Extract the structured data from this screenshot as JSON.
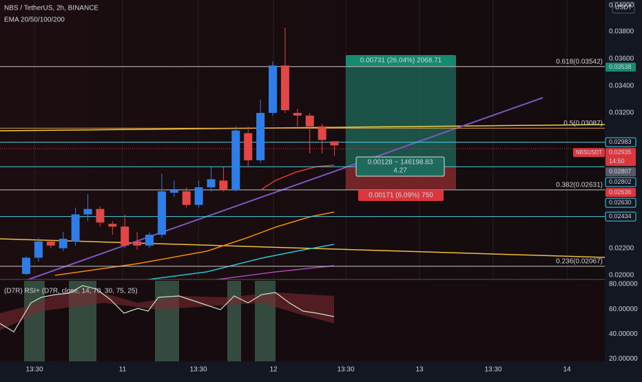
{
  "header": {
    "symbol": "NBS / TetherUS, 2h, BINANCE",
    "indicator": "EMA 20/50/100/200"
  },
  "currency": "USDT",
  "price_axis": {
    "ticks": [
      {
        "value": 0.04,
        "label": "0.04000"
      },
      {
        "value": 0.038,
        "label": "0.03800"
      },
      {
        "value": 0.036,
        "label": "0.03600"
      },
      {
        "value": 0.034,
        "label": "0.03400"
      },
      {
        "value": 0.032,
        "label": "0.03200"
      },
      {
        "value": 0.022,
        "label": "0.02200"
      },
      {
        "value": 0.02,
        "label": "0.02000"
      }
    ]
  },
  "time_axis": {
    "labels": [
      "13:30",
      "11",
      "13:30",
      "12",
      "13:30",
      "13",
      "13:30",
      "14"
    ]
  },
  "candles": [
    {
      "o": 0.0201,
      "h": 0.0214,
      "l": 0.02,
      "c": 0.0213
    },
    {
      "o": 0.0213,
      "h": 0.0228,
      "l": 0.021,
      "c": 0.0225
    },
    {
      "o": 0.0225,
      "h": 0.0226,
      "l": 0.022,
      "c": 0.0222
    },
    {
      "o": 0.022,
      "h": 0.0232,
      "l": 0.0218,
      "c": 0.0227
    },
    {
      "o": 0.0225,
      "h": 0.025,
      "l": 0.0222,
      "c": 0.0245
    },
    {
      "o": 0.0245,
      "h": 0.026,
      "l": 0.024,
      "c": 0.0249
    },
    {
      "o": 0.0249,
      "h": 0.0251,
      "l": 0.0236,
      "c": 0.0239
    },
    {
      "o": 0.0238,
      "h": 0.024,
      "l": 0.023,
      "c": 0.0236
    },
    {
      "o": 0.0236,
      "h": 0.0245,
      "l": 0.022,
      "c": 0.0222
    },
    {
      "o": 0.0225,
      "h": 0.0232,
      "l": 0.0219,
      "c": 0.0222
    },
    {
      "o": 0.0222,
      "h": 0.0232,
      "l": 0.022,
      "c": 0.023
    },
    {
      "o": 0.023,
      "h": 0.0275,
      "l": 0.0228,
      "c": 0.0262
    },
    {
      "o": 0.0261,
      "h": 0.027,
      "l": 0.0258,
      "c": 0.0263
    },
    {
      "o": 0.0262,
      "h": 0.0265,
      "l": 0.025,
      "c": 0.0252
    },
    {
      "o": 0.0252,
      "h": 0.027,
      "l": 0.025,
      "c": 0.0265
    },
    {
      "o": 0.0265,
      "h": 0.028,
      "l": 0.0262,
      "c": 0.0271
    },
    {
      "o": 0.027,
      "h": 0.028,
      "l": 0.0262,
      "c": 0.0263
    },
    {
      "o": 0.0263,
      "h": 0.031,
      "l": 0.0262,
      "c": 0.0307
    },
    {
      "o": 0.0305,
      "h": 0.031,
      "l": 0.028,
      "c": 0.0285
    },
    {
      "o": 0.0285,
      "h": 0.033,
      "l": 0.0283,
      "c": 0.032
    },
    {
      "o": 0.032,
      "h": 0.0358,
      "l": 0.0318,
      "c": 0.0355
    },
    {
      "o": 0.0355,
      "h": 0.0383,
      "l": 0.032,
      "c": 0.0322
    },
    {
      "o": 0.032,
      "h": 0.0323,
      "l": 0.031,
      "c": 0.0318
    },
    {
      "o": 0.0318,
      "h": 0.032,
      "l": 0.029,
      "c": 0.031
    },
    {
      "o": 0.031,
      "h": 0.0312,
      "l": 0.029,
      "c": 0.03
    },
    {
      "o": 0.0299,
      "h": 0.0299,
      "l": 0.0288,
      "c": 0.0296
    }
  ],
  "levels": [
    {
      "label": "0.618(0.03542)",
      "price": 0.03542,
      "color": "#c8c8c8"
    },
    {
      "label": "0.5(0.03087)",
      "price": 0.03087,
      "color": "#e0a040"
    },
    {
      "label": "0.382(0.02631)",
      "price": 0.02631,
      "color": "#c8c8c8"
    },
    {
      "label": "0.236(0.02067)",
      "price": 0.02067,
      "color": "#c8c8c8"
    }
  ],
  "lines": [
    {
      "price": 0.02983,
      "color": "#4dd0e1"
    },
    {
      "price": 0.02802,
      "color": "#4dd0e1"
    },
    {
      "price": 0.02434,
      "color": "#4dd0e1"
    }
  ],
  "tags": [
    {
      "text": "0.03538",
      "price": 0.03538,
      "style": "green"
    },
    {
      "text": "0.02983",
      "price": 0.02983,
      "style": "cyan"
    },
    {
      "text": "0.02935",
      "price": 0.02935,
      "style": "red",
      "symbol": "NBSUSDT",
      "timer": "14:50"
    },
    {
      "text": "0.02807",
      "price": 0.02807,
      "style": "gray"
    },
    {
      "text": "0.02802",
      "price": 0.02802,
      "style": "cyan"
    },
    {
      "text": "0.02636",
      "price": 0.02636,
      "style": "red"
    },
    {
      "text": "0.02630",
      "price": 0.0263,
      "style": "cyan"
    },
    {
      "text": "0.02434",
      "price": 0.02434,
      "style": "cyan"
    }
  ],
  "position": {
    "target": "0.00731 (26.04%) 2068.71",
    "ratio": "0.00128 ~ 146198.83",
    "ratio_value": "4.27",
    "stop": "0.00171 (6.09%) 750"
  },
  "rsi": {
    "title": "(D7R) RSI+ (D7R, close, 14, 70, 30, 75, 25)",
    "ticks": [
      {
        "value": 80,
        "label": "80.00000"
      },
      {
        "value": 60,
        "label": "60.00000"
      },
      {
        "value": 40,
        "label": "40.00000"
      },
      {
        "value": 20,
        "label": "20.00000"
      }
    ]
  }
}
